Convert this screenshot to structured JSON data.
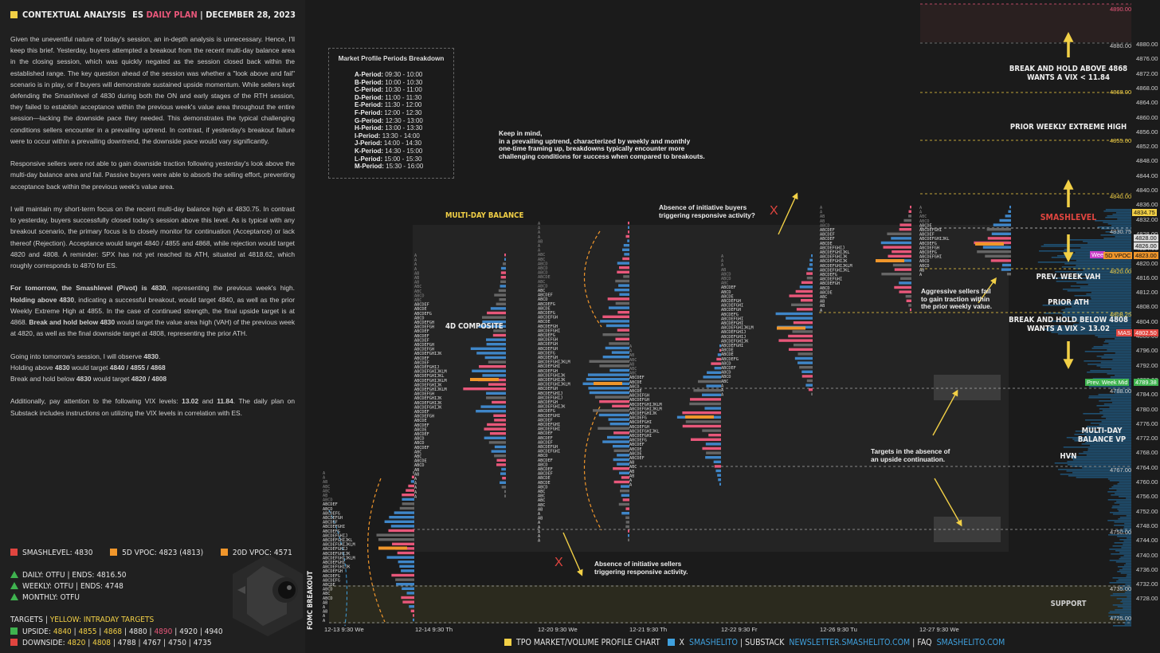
{
  "header": {
    "title": "CONTEXTUAL ANALYSIS",
    "plan_prefix": "ES",
    "plan_name": "DAILY PLAN",
    "date": "DECEMBER 28, 2023"
  },
  "analysis": {
    "p1": "Given the uneventful nature of today's session, an in-depth analysis is unnecessary. Hence, I'll keep this brief. Yesterday, buyers attempted a breakout from the recent multi-day balance area in the closing session, which was quickly negated as the session closed back within the established range. The key question ahead of the session was whether a \"look above and fail\" scenario is in play, or if buyers will demonstrate sustained upside momentum. While sellers kept defending the Smashlevel of 4830 during both the ON and early stages of the RTH session, they failed to establish acceptance within the previous week's value area throughout the entire session—lacking the downside pace they needed. This demonstrates the typical challenging conditions sellers encounter in a prevailing uptrend. In contrast, if yesterday's breakout failure were to occur within a prevailing downtrend, the downside pace would vary significantly.",
    "p2": "Responsive sellers were not able to gain downside traction following yesterday's look above the multi-day balance area and fail. Passive buyers were able to absorb the selling effort, preventing acceptance back within the previous week's value area.",
    "p3": "I will maintain my short-term focus on the recent multi-day balance high at 4830.75. In contrast to yesterday, buyers successfully closed today's session above this level. As is typical with any breakout scenario, the primary focus is to closely monitor for continuation (Acceptance) or lack thereof (Rejection). Acceptance would target 4840 / 4855 and 4868, while rejection would target 4820 and 4808. A reminder: SPX has not yet reached its ATH, situated at 4818.62, which roughly corresponds to 4870 for ES.",
    "p4_b1": "For tomorrow, the Smashlevel (Pivot) is 4830",
    "p4_t1": ", representing the previous week's high. ",
    "p4_b2": "Holding above 4830",
    "p4_t2": ", indicating a successful breakout, would target 4840, as well as the prior Weekly Extreme High at 4855. In the case of continued strength, the final upside target is at 4868. ",
    "p4_b3": "Break and hold below 4830",
    "p4_t3": " would target the value area high (VAH) of the previous week at 4820, as well as the final downside target at 4808, representing the prior ATH.",
    "p5_a": "Going into tomorrow's session, I will observe ",
    "p5_a_b": "4830",
    "p5_a_end": ".",
    "p5_b": "Holding above ",
    "p5_b_b1": "4830",
    "p5_b_mid": " would target ",
    "p5_b_b2": "4840 / 4855 / 4868",
    "p5_c": "Break and hold below ",
    "p5_c_b1": "4830",
    "p5_c_mid": " would target ",
    "p5_c_b2": "4820 / 4808",
    "p6_a": "Additionally, pay attention to the following VIX levels: ",
    "p6_b1": "13.02",
    "p6_and": " and ",
    "p6_b2": "11.84",
    "p6_c": ". The daily plan on Substack includes instructions on utilizing the VIX levels in correlation with ES."
  },
  "levels": {
    "smashlevel": "SMASHLEVEL: 4830",
    "vpoc5": "5D VPOC: 4823 (4813)",
    "vpoc20": "20D VPOC: 4571"
  },
  "trends": {
    "daily": "DAILY: OTFU  |  ENDS: 4816.50",
    "weekly": "WEEKLY:  OTFU  |  ENDS: 4748",
    "monthly": "MONTHLY: OTFU"
  },
  "targets": {
    "title": "TARGETS  |  ",
    "title_yellow": "YELLOW: INTRADAY TARGETS",
    "upside_label": "UPSIDE: ",
    "upside": [
      "4840",
      "4855",
      "4868",
      "4880",
      "4890",
      "4920",
      "4940"
    ],
    "downside_label": "DOWNSIDE: ",
    "downside": [
      "4820",
      "4808",
      "4788",
      "4767",
      "4750",
      "4735"
    ]
  },
  "colors": {
    "accent_yellow": "#f2d046",
    "accent_pink": "#e8577a",
    "red_square": "#e0453f",
    "orange_square": "#f0962b",
    "green": "#3fb34f",
    "blue_profile": "#2d6f9c",
    "tpo_bar_pink": "#e8577a",
    "tpo_bar_blue": "#3f86c8"
  },
  "chart": {
    "periods_title": "Market Profile Periods Breakdown",
    "periods": [
      {
        "p": "A-Period:",
        "t": "09:30 - 10:00"
      },
      {
        "p": "B-Period:",
        "t": "10:00 - 10:30"
      },
      {
        "p": "C-Period:",
        "t": "10:30 - 11:00"
      },
      {
        "p": "D-Period:",
        "t": "11:00 - 11:30"
      },
      {
        "p": "E-Period:",
        "t": "11:30 - 12:00"
      },
      {
        "p": "F-Period:",
        "t": "12:00 - 12:30"
      },
      {
        "p": "G-Period:",
        "t": "12:30 - 13:00"
      },
      {
        "p": "H-Period:",
        "t": "13:00 - 13:30"
      },
      {
        "p": "I-Period:",
        "t": "13:30 - 14:00"
      },
      {
        "p": "J-Period:",
        "t": "14:00 - 14:30"
      },
      {
        "p": "K-Period:",
        "t": "14:30 - 15:00"
      },
      {
        "p": "L-Period:",
        "t": "15:00 - 15:30"
      },
      {
        "p": "M-Period:",
        "t": "15:30 - 16:00"
      }
    ],
    "note_keep_in_mind": [
      "Keep in mind,",
      "in a prevailing uptrend, characterized by weekly and monthly",
      "one-time framing up, breakdowns typically encounter more",
      "challenging conditions for success when compared to breakouts."
    ],
    "note_absence_buyers": [
      "Absence of initiative buyers",
      "triggering responsive activity?"
    ],
    "note_absence_sellers": [
      "Absence of initiative sellers",
      "triggering responsive activity."
    ],
    "note_aggressive": [
      "Aggressive sellers fail",
      "to gain traction within",
      "the prior weekly value."
    ],
    "note_targets": [
      "Targets in the absence of",
      "an upside continuation."
    ],
    "label_multi_day_balance": "MULTI-DAY BALANCE",
    "label_4d_composite": "4D COMPOSITE",
    "label_fomc": "FOMC BREAKOUT",
    "label_break_above": [
      "BREAK AND HOLD ABOVE 4868",
      "WANTS A VIX < 11.84"
    ],
    "label_prior_weekly": "PRIOR WEEKLY EXTREME HIGH",
    "label_smashlevel": "SMASHLEVEL",
    "label_prev_week_vah": "PREV. WEEK VAH",
    "label_prior_ath": "PRIOR ATH",
    "label_break_below": [
      "BREAK AND HOLD BELOW 4808",
      "WANTS A VIX > 13.02"
    ],
    "label_multi_day_vp": [
      "MULTI-DAY",
      "BALANCE VP"
    ],
    "label_hvn": "HVN",
    "label_support": "SUPPORT",
    "x_mark": "X",
    "dates": [
      "12-13  9:30 We",
      "12-14  9:30 Th",
      "12-20  9:30 We",
      "12-21  9:30 Th",
      "12-22  9:30 Fr",
      "12-26  9:30 Tu",
      "12-27  9:30 We"
    ],
    "price_ticks": [
      "4880.00",
      "4876.00",
      "4872.00",
      "4868.00",
      "4864.00",
      "4860.00",
      "4856.00",
      "4852.00",
      "4848.00",
      "4844.00",
      "4840.00",
      "4836.00",
      "4832.00",
      "4828.00",
      "4824.00",
      "4820.00",
      "4816.00",
      "4812.00",
      "4808.00",
      "4804.00",
      "4800.00",
      "4796.00",
      "4792.00",
      "4788.00",
      "4784.00",
      "4780.00",
      "4776.00",
      "4772.00",
      "4768.00",
      "4764.00",
      "4760.00",
      "4756.00",
      "4752.00",
      "4748.00",
      "4744.00",
      "4740.00",
      "4736.00",
      "4732.00",
      "4728.00"
    ],
    "level_tags": {
      "l4890": "4890.00",
      "l4880": "4880.00",
      "l4868": "4868.00",
      "l4855": "4855.00",
      "l4840": "4840.00",
      "l4830": "4830.75",
      "l4820": "4820.00",
      "l4808": "4808.25",
      "l4788": "4788.00",
      "l4767": "4767.00",
      "l4750": "4750.00",
      "l4735": "4735.00",
      "l4725": "4725.00"
    },
    "pills": {
      "last": "4834.75",
      "wee": "Wee",
      "vpoc5d": "5D VPOC",
      "p4828": "4828.00",
      "p4826": "4826.00",
      "p4823": "4823.00",
      "mas": "MAS",
      "p4802": "4802.50",
      "prev_week_mid": "Prev. Week Mid",
      "p4789": "4789.38"
    }
  },
  "footer": {
    "chart_label": "TPO MARKET/VOLUME PROFILE CHART",
    "x_label": "X",
    "x_handle": "SMASHELITO",
    "substack_label": "SUBSTACK",
    "substack_url": "NEWSLETTER.SMASHELITO.COM",
    "faq_label": "FAQ",
    "faq_url": "SMASHELITO.COM"
  }
}
